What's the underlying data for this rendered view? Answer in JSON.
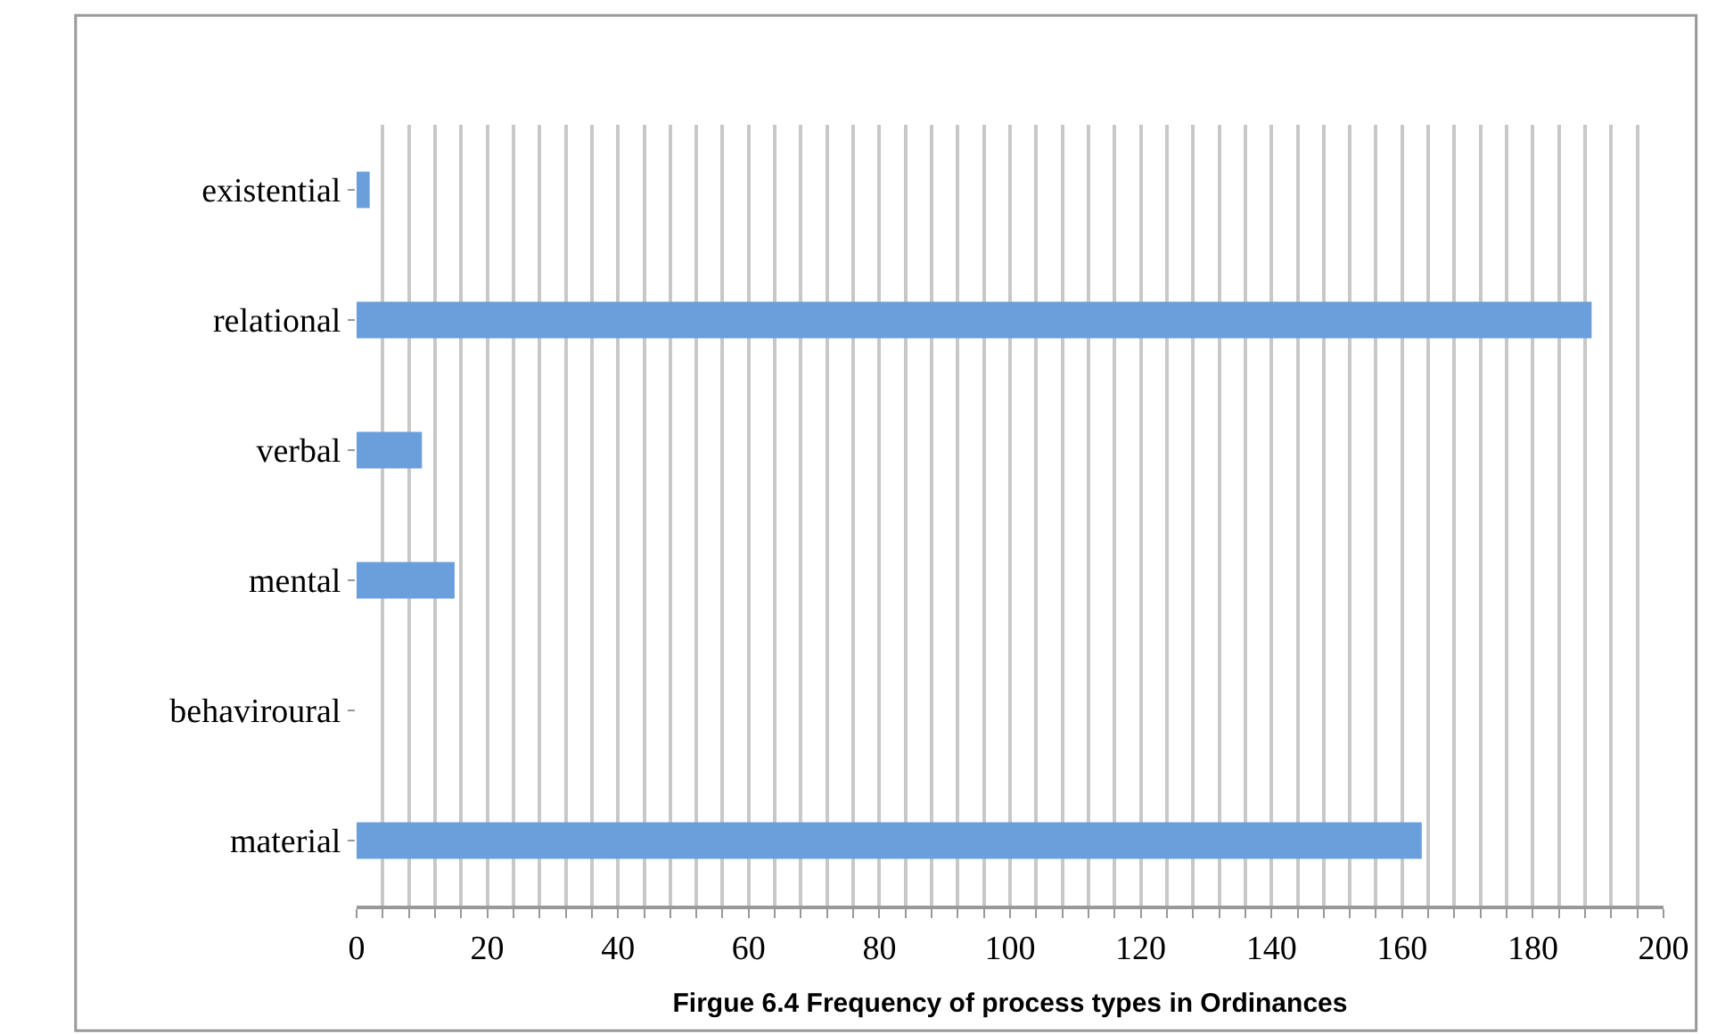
{
  "chart_data": {
    "type": "bar",
    "orientation": "horizontal",
    "xlabel": "Firgue 6.4 Frequency of process types in Ordinances",
    "categories": [
      "existential",
      "relational",
      "verbal",
      "mental",
      "behaviroural",
      "material"
    ],
    "values": [
      2,
      189,
      10,
      15,
      0,
      163
    ],
    "color": "#6b9fdc",
    "xlim": [
      0,
      200
    ],
    "xticks": [
      0,
      {
        "value": 4,
        "label": null
      },
      {
        "value": 8,
        "label": null
      },
      {
        "value": 12,
        "label": null
      },
      {
        "value": 16,
        "label": null
      },
      20,
      {
        "value": 24,
        "label": null
      },
      {
        "value": 28,
        "label": null
      },
      {
        "value": 32,
        "label": null
      },
      {
        "value": 36,
        "label": null
      },
      40,
      {
        "value": 44,
        "label": null
      },
      {
        "value": 48,
        "label": null
      },
      {
        "value": 52,
        "label": null
      },
      {
        "value": 56,
        "label": null
      },
      60,
      {
        "value": 64,
        "label": null
      },
      {
        "value": 68,
        "label": null
      },
      {
        "value": 72,
        "label": null
      },
      {
        "value": 76,
        "label": null
      },
      80,
      {
        "value": 84,
        "label": null
      },
      {
        "value": 88,
        "label": null
      },
      {
        "value": 92,
        "label": null
      },
      {
        "value": 96,
        "label": null
      },
      100,
      {
        "value": 104,
        "label": null
      },
      {
        "value": 108,
        "label": null
      },
      {
        "value": 112,
        "label": null
      },
      {
        "value": 116,
        "label": null
      },
      120,
      {
        "value": 124,
        "label": null
      },
      {
        "value": 128,
        "label": null
      },
      {
        "value": 132,
        "label": null
      },
      {
        "value": 136,
        "label": null
      },
      140,
      {
        "value": 144,
        "label": null
      },
      {
        "value": 148,
        "label": null
      },
      {
        "value": 152,
        "label": null
      },
      {
        "value": 156,
        "label": null
      },
      160,
      {
        "value": 164,
        "label": null
      },
      {
        "value": 168,
        "label": null
      },
      {
        "value": 172,
        "label": null
      },
      {
        "value": 176,
        "label": null
      },
      180,
      {
        "value": 184,
        "label": null
      },
      {
        "value": 188,
        "label": null
      },
      {
        "value": 192,
        "label": null
      },
      {
        "value": 196,
        "label": null
      },
      200
    ],
    "grid": "x"
  }
}
